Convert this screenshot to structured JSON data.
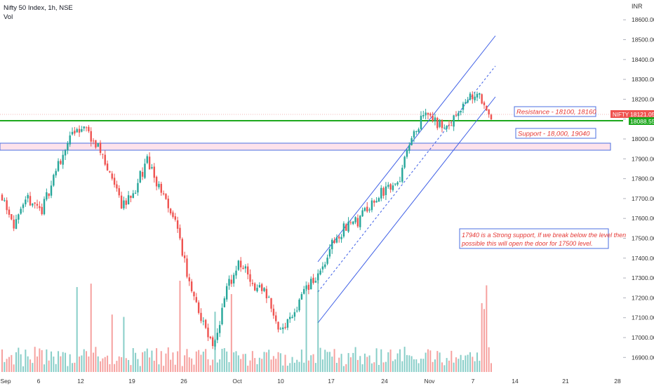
{
  "header": {
    "title": "Nifty 50 Index, 1h, NSE",
    "volume_label": "Vol"
  },
  "price_axis": {
    "currency": "INR",
    "ticks": [
      "18600.00",
      "18500.00",
      "18400.00",
      "18300.00",
      "18200.00",
      "18100.00",
      "18000.00",
      "17900.00",
      "17800.00",
      "17700.00",
      "17600.00",
      "17500.00",
      "17400.00",
      "17300.00",
      "17200.00",
      "17100.00",
      "17000.00",
      "16900.00"
    ],
    "badge_symbol": "NIFTY",
    "last_price": "18121.05",
    "line_price": "18088.55"
  },
  "time_axis": {
    "ticks": [
      "Sep",
      "6",
      "12",
      "19",
      "26",
      "Oct",
      "10",
      "17",
      "24",
      "Nov",
      "7",
      "14",
      "21",
      "28"
    ]
  },
  "annotations": {
    "resistance": "Resistance - 18100, 18160",
    "support": "Support - 18,000, 19040",
    "note_line1": "17940 is a Strong support, If we break below the level then",
    "note_line2": "possible this will open the door for 17500 level."
  },
  "colors": {
    "up": "#26a69a",
    "down": "#ef5350",
    "channel": "#2962ff",
    "green_line": "#1ea81e",
    "annotation_text": "#e53935",
    "zone_fill": "#fde2ec"
  },
  "chart_data": {
    "type": "candlestick",
    "ylim": [
      16850,
      18700
    ],
    "key_levels": {
      "green_horizontal": 18088.55,
      "support_zone": [
        17940,
        18000
      ],
      "last_price": 18121.05
    },
    "close_path": [
      [
        "Sep 1",
        17720
      ],
      [
        "Sep 2",
        17560
      ],
      [
        "Sep 5",
        17700
      ],
      [
        "Sep 7",
        17640
      ],
      [
        "Sep 9",
        17830
      ],
      [
        "Sep 12",
        17990
      ],
      [
        "Sep 14",
        18070
      ],
      [
        "Sep 15",
        17990
      ],
      [
        "Sep 16",
        17850
      ],
      [
        "Sep 19",
        17660
      ],
      [
        "Sep 21",
        17740
      ],
      [
        "Sep 22",
        17900
      ],
      [
        "Sep 23",
        17720
      ],
      [
        "Sep 26",
        17600
      ],
      [
        "Sep 27",
        17320
      ],
      [
        "Sep 30",
        17110
      ],
      [
        "Oct 3",
        16940
      ],
      [
        "Oct 4",
        17250
      ],
      [
        "Oct 5",
        17380
      ],
      [
        "Oct 7",
        17270
      ],
      [
        "Oct 10",
        17220
      ],
      [
        "Oct 11",
        17040
      ],
      [
        "Oct 13",
        17120
      ],
      [
        "Oct 14",
        17250
      ],
      [
        "Oct 17",
        17320
      ],
      [
        "Oct 18",
        17480
      ],
      [
        "Oct 20",
        17560
      ],
      [
        "Oct 21",
        17590
      ],
      [
        "Oct 25",
        17690
      ],
      [
        "Oct 27",
        17750
      ],
      [
        "Oct 28",
        17790
      ],
      [
        "Oct 31",
        18020
      ],
      [
        "Nov 1",
        18120
      ],
      [
        "Nov 3",
        18070
      ],
      [
        "Nov 4",
        18080
      ],
      [
        "Nov 7",
        18190
      ],
      [
        "Nov 8",
        18220
      ],
      [
        "Nov 9",
        18121.05
      ]
    ]
  }
}
